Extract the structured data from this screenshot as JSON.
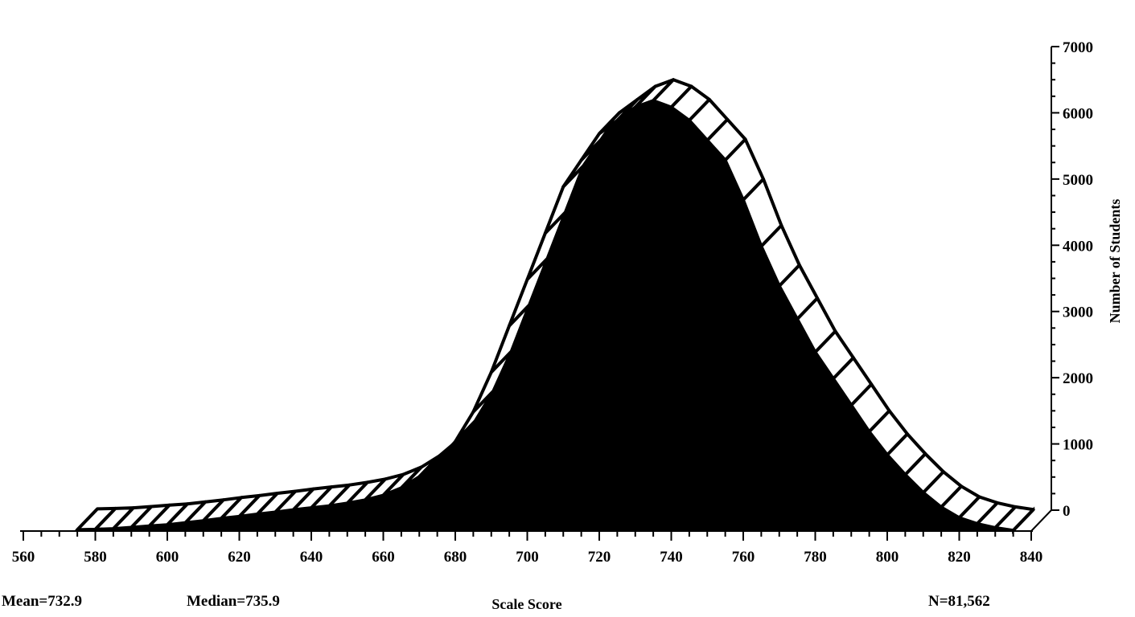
{
  "chart_data": {
    "type": "area",
    "xlabel": "Scale Score",
    "ylabel": "Number of Students",
    "xlim": [
      560,
      840
    ],
    "ylim": [
      0,
      7000
    ],
    "x_ticks": [
      560,
      580,
      600,
      620,
      640,
      660,
      680,
      700,
      720,
      740,
      760,
      780,
      800,
      820,
      840
    ],
    "y_ticks": [
      0,
      1000,
      2000,
      3000,
      4000,
      5000,
      6000,
      7000
    ],
    "x": [
      575,
      580,
      585,
      590,
      595,
      600,
      605,
      610,
      615,
      620,
      625,
      630,
      635,
      640,
      645,
      650,
      655,
      660,
      665,
      670,
      675,
      680,
      685,
      690,
      695,
      700,
      705,
      710,
      715,
      720,
      725,
      730,
      735,
      740,
      745,
      750,
      755,
      760,
      765,
      770,
      775,
      780,
      785,
      790,
      795,
      800,
      805,
      810,
      815,
      820,
      825,
      830,
      835
    ],
    "values": [
      20,
      25,
      35,
      55,
      75,
      95,
      125,
      155,
      190,
      220,
      255,
      285,
      320,
      350,
      380,
      420,
      470,
      540,
      650,
      820,
      1050,
      1350,
      1800,
      2400,
      3100,
      3800,
      4500,
      5200,
      5600,
      6000,
      6200,
      6400,
      6500,
      6400,
      6200,
      5900,
      5600,
      5000,
      4300,
      3700,
      3200,
      2700,
      2300,
      1900,
      1500,
      1150,
      850,
      580,
      360,
      200,
      110,
      50,
      10
    ],
    "annotations": {
      "mean": "Mean=732.9",
      "median": "Median=735.9",
      "n": "N=81,562"
    }
  }
}
